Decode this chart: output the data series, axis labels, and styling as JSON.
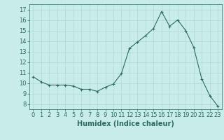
{
  "x": [
    0,
    1,
    2,
    3,
    4,
    5,
    6,
    7,
    8,
    9,
    10,
    11,
    12,
    13,
    14,
    15,
    16,
    17,
    18,
    19,
    20,
    21,
    22,
    23
  ],
  "y": [
    10.6,
    10.1,
    9.8,
    9.8,
    9.8,
    9.7,
    9.4,
    9.4,
    9.2,
    9.6,
    9.9,
    10.9,
    13.3,
    13.9,
    14.5,
    15.2,
    16.8,
    15.4,
    16.0,
    15.0,
    13.4,
    10.4,
    8.8,
    7.8
  ],
  "line_color": "#2d6b5e",
  "marker": "+",
  "marker_size": 3,
  "background_color": "#c8ecea",
  "grid_color": "#b0d8d5",
  "xlabel": "Humidex (Indice chaleur)",
  "xlabel_fontsize": 7,
  "tick_fontsize": 6,
  "xlim": [
    -0.5,
    23.5
  ],
  "ylim": [
    7.5,
    17.5
  ],
  "yticks": [
    8,
    9,
    10,
    11,
    12,
    13,
    14,
    15,
    16,
    17
  ],
  "xticks": [
    0,
    1,
    2,
    3,
    4,
    5,
    6,
    7,
    8,
    9,
    10,
    11,
    12,
    13,
    14,
    15,
    16,
    17,
    18,
    19,
    20,
    21,
    22,
    23
  ]
}
